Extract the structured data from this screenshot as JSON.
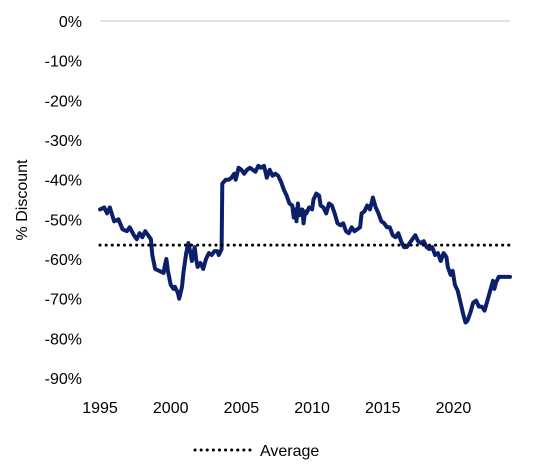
{
  "chart_data": {
    "type": "line",
    "title": "",
    "xlabel": "",
    "ylabel": "% Discount",
    "xlim": [
      1995,
      2024
    ],
    "ylim": [
      -90,
      0
    ],
    "x_ticks": [
      1995,
      2000,
      2005,
      2010,
      2015,
      2020
    ],
    "x_tick_labels": [
      "1995",
      "2000",
      "2005",
      "2010",
      "2015",
      "2020"
    ],
    "y_ticks": [
      0,
      -10,
      -20,
      -30,
      -40,
      -50,
      -60,
      -70,
      -80,
      -90
    ],
    "y_tick_labels": [
      "0%",
      "-10%",
      "-20%",
      "-30%",
      "-40%",
      "-50%",
      "-60%",
      "-70%",
      "-80%",
      "-90%"
    ],
    "grid": false,
    "legend": {
      "placement": "bottom",
      "entries": [
        "Average"
      ]
    },
    "colors": {
      "discount_line": "#0b1f6b",
      "average_line": "#000000",
      "zero_line": "#d9d9d9"
    },
    "series": [
      {
        "style": "solid",
        "points": [
          [
            1995.0,
            -47.5
          ],
          [
            1995.3,
            -47.0
          ],
          [
            1995.5,
            -48.5
          ],
          [
            1995.7,
            -47.0
          ],
          [
            1996.0,
            -50.5
          ],
          [
            1996.3,
            -50.0
          ],
          [
            1996.6,
            -52.5
          ],
          [
            1996.9,
            -53.0
          ],
          [
            1997.1,
            -52.0
          ],
          [
            1997.4,
            -54.0
          ],
          [
            1997.6,
            -55.0
          ],
          [
            1997.8,
            -53.5
          ],
          [
            1998.0,
            -54.5
          ],
          [
            1998.2,
            -53.0
          ],
          [
            1998.4,
            -54.0
          ],
          [
            1998.6,
            -55.0
          ],
          [
            1998.7,
            -59.0
          ],
          [
            1998.9,
            -62.5
          ],
          [
            1999.2,
            -63.0
          ],
          [
            1999.5,
            -63.5
          ],
          [
            1999.6,
            -61.5
          ],
          [
            1999.7,
            -60.0
          ],
          [
            1999.8,
            -63.0
          ],
          [
            2000.0,
            -66.5
          ],
          [
            2000.2,
            -67.5
          ],
          [
            2000.3,
            -67.0
          ],
          [
            2000.5,
            -68.5
          ],
          [
            2000.6,
            -70.0
          ],
          [
            2000.8,
            -67.0
          ],
          [
            2000.9,
            -63.5
          ],
          [
            2001.1,
            -58.5
          ],
          [
            2001.25,
            -56.0
          ],
          [
            2001.4,
            -58.5
          ],
          [
            2001.5,
            -60.5
          ],
          [
            2001.7,
            -57.0
          ],
          [
            2001.8,
            -60.0
          ],
          [
            2001.9,
            -62.0
          ],
          [
            2002.1,
            -61.0
          ],
          [
            2002.3,
            -62.5
          ],
          [
            2002.5,
            -60.0
          ],
          [
            2002.7,
            -58.5
          ],
          [
            2002.9,
            -59.0
          ],
          [
            2003.1,
            -58.0
          ],
          [
            2003.3,
            -58.0
          ],
          [
            2003.4,
            -59.0
          ],
          [
            2003.6,
            -57.5
          ],
          [
            2003.65,
            -41.0
          ],
          [
            2003.9,
            -40.0
          ],
          [
            2004.1,
            -40.0
          ],
          [
            2004.3,
            -39.5
          ],
          [
            2004.5,
            -38.5
          ],
          [
            2004.6,
            -40.0
          ],
          [
            2004.8,
            -37.0
          ],
          [
            2005.0,
            -37.5
          ],
          [
            2005.2,
            -38.5
          ],
          [
            2005.4,
            -37.5
          ],
          [
            2005.6,
            -37.0
          ],
          [
            2005.8,
            -37.5
          ],
          [
            2006.0,
            -38.0
          ],
          [
            2006.2,
            -36.5
          ],
          [
            2006.4,
            -37.0
          ],
          [
            2006.6,
            -36.5
          ],
          [
            2006.8,
            -39.5
          ],
          [
            2007.0,
            -37.5
          ],
          [
            2007.2,
            -39.0
          ],
          [
            2007.4,
            -38.5
          ],
          [
            2007.6,
            -39.0
          ],
          [
            2007.8,
            -40.5
          ],
          [
            2008.0,
            -42.5
          ],
          [
            2008.2,
            -44.0
          ],
          [
            2008.4,
            -46.0
          ],
          [
            2008.6,
            -46.5
          ],
          [
            2008.7,
            -49.5
          ],
          [
            2008.8,
            -47.5
          ],
          [
            2008.9,
            -50.5
          ],
          [
            2009.0,
            -46.0
          ],
          [
            2009.1,
            -49.0
          ],
          [
            2009.3,
            -47.5
          ],
          [
            2009.4,
            -51.0
          ],
          [
            2009.5,
            -48.0
          ],
          [
            2009.6,
            -48.5
          ],
          [
            2009.8,
            -47.0
          ],
          [
            2010.0,
            -47.5
          ],
          [
            2010.1,
            -45.0
          ],
          [
            2010.3,
            -43.5
          ],
          [
            2010.5,
            -44.0
          ],
          [
            2010.6,
            -46.5
          ],
          [
            2010.8,
            -47.0
          ],
          [
            2011.0,
            -48.5
          ],
          [
            2011.2,
            -46.0
          ],
          [
            2011.4,
            -46.5
          ],
          [
            2011.6,
            -48.5
          ],
          [
            2011.8,
            -51.0
          ],
          [
            2012.0,
            -51.5
          ],
          [
            2012.2,
            -51.0
          ],
          [
            2012.4,
            -53.0
          ],
          [
            2012.6,
            -53.5
          ],
          [
            2012.8,
            -52.0
          ],
          [
            2013.0,
            -53.0
          ],
          [
            2013.2,
            -52.5
          ],
          [
            2013.4,
            -52.0
          ],
          [
            2013.5,
            -48.5
          ],
          [
            2013.7,
            -48.0
          ],
          [
            2013.9,
            -46.5
          ],
          [
            2014.1,
            -47.5
          ],
          [
            2014.3,
            -44.5
          ],
          [
            2014.5,
            -47.0
          ],
          [
            2014.7,
            -48.5
          ],
          [
            2014.9,
            -50.5
          ],
          [
            2015.1,
            -51.0
          ],
          [
            2015.3,
            -52.0
          ],
          [
            2015.5,
            -52.0
          ],
          [
            2015.7,
            -54.0
          ],
          [
            2015.9,
            -54.5
          ],
          [
            2016.1,
            -53.5
          ],
          [
            2016.3,
            -55.5
          ],
          [
            2016.5,
            -57.0
          ],
          [
            2016.7,
            -57.0
          ],
          [
            2016.9,
            -56.0
          ],
          [
            2017.1,
            -55.0
          ],
          [
            2017.3,
            -54.0
          ],
          [
            2017.5,
            -55.5
          ],
          [
            2017.7,
            -56.0
          ],
          [
            2017.9,
            -55.5
          ],
          [
            2018.1,
            -57.0
          ],
          [
            2018.3,
            -57.5
          ],
          [
            2018.5,
            -57.0
          ],
          [
            2018.7,
            -59.0
          ],
          [
            2018.9,
            -58.5
          ],
          [
            2019.1,
            -60.5
          ],
          [
            2019.3,
            -58.5
          ],
          [
            2019.5,
            -59.5
          ],
          [
            2019.6,
            -62.0
          ],
          [
            2019.8,
            -64.0
          ],
          [
            2019.95,
            -63.0
          ],
          [
            2020.1,
            -66.5
          ],
          [
            2020.3,
            -68.0
          ],
          [
            2020.5,
            -71.0
          ],
          [
            2020.7,
            -74.0
          ],
          [
            2020.85,
            -76.0
          ],
          [
            2021.0,
            -75.5
          ],
          [
            2021.2,
            -73.5
          ],
          [
            2021.4,
            -71.0
          ],
          [
            2021.6,
            -70.5
          ],
          [
            2021.8,
            -72.0
          ],
          [
            2022.0,
            -72.0
          ],
          [
            2022.2,
            -73.0
          ],
          [
            2022.4,
            -70.5
          ],
          [
            2022.6,
            -68.0
          ],
          [
            2022.8,
            -65.5
          ],
          [
            2022.9,
            -67.5
          ],
          [
            2023.0,
            -66.0
          ],
          [
            2023.2,
            -64.5
          ],
          [
            2023.4,
            -64.5
          ],
          [
            2023.7,
            -64.5
          ],
          [
            2024.0,
            -64.5
          ]
        ]
      },
      {
        "name": "Average",
        "style": "dotted",
        "points": [
          [
            1995.0,
            -56.5
          ],
          [
            2024.0,
            -56.5
          ]
        ]
      }
    ]
  }
}
